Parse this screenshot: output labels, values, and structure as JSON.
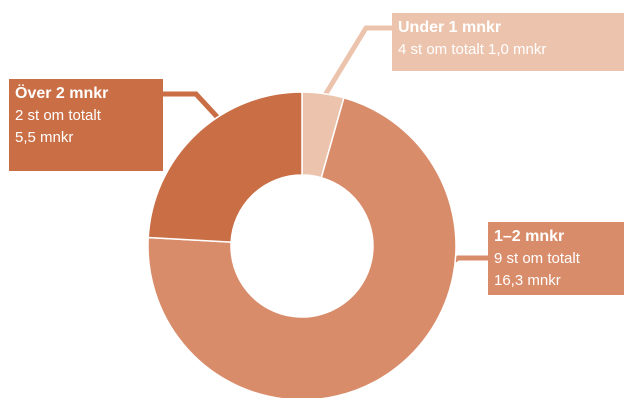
{
  "chart_data": {
    "type": "pie",
    "variant": "donut",
    "categories": [
      "Under 1 mnkr",
      "1–2 mnkr",
      "Över 2 mnkr"
    ],
    "values": [
      1.0,
      16.3,
      5.5
    ],
    "unit": "mnkr",
    "slice_colors": [
      "#ecc4ad",
      "#d98c6a",
      "#c96e45"
    ],
    "labels": [
      {
        "title": "Under 1 mnkr",
        "lines": [
          "4 st om totalt 1,0 mnkr"
        ],
        "color": "#ecc4ad"
      },
      {
        "title": "1–2 mnkr",
        "lines": [
          "9 st om totalt",
          "16,3 mnkr"
        ],
        "color": "#d98c6a"
      },
      {
        "title": "Över 2 mnkr",
        "lines": [
          "2 st om totalt",
          "5,5 mnkr"
        ],
        "color": "#c96e45"
      }
    ]
  }
}
